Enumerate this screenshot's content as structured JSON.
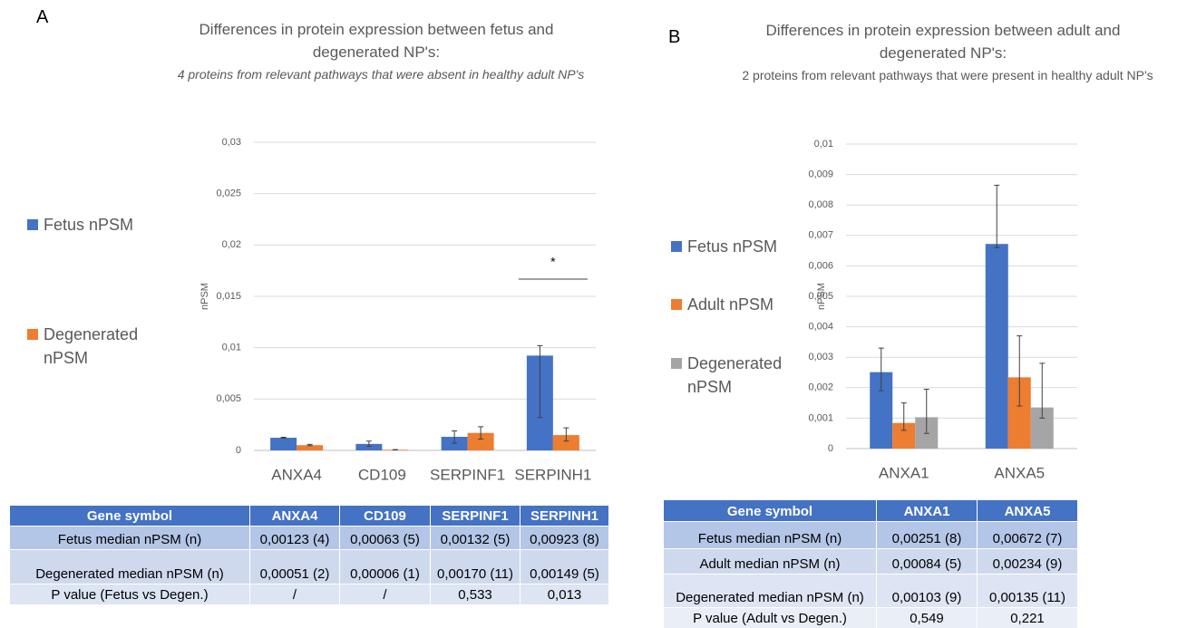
{
  "panel_labels": [
    "A",
    "B"
  ],
  "chart_data": [
    {
      "type": "bar",
      "title": "Differences in protein expression between fetus and degenerated NP's:",
      "subtitle": "4 proteins from relevant pathways that were absent in healthy adult NP's",
      "y_label": "nPSM",
      "categories": [
        "ANXA4",
        "CD109",
        "SERPINF1",
        "SERPINH1"
      ],
      "series": [
        {
          "name": "Fetus nPSM",
          "color": "#4472c4",
          "values": [
            0.00123,
            0.00063,
            0.00132,
            0.00923
          ],
          "error_low": [
            0.00118,
            0.0004,
            0.0007,
            0.0032
          ],
          "error_high": [
            0.00128,
            0.0009,
            0.0019,
            0.0102
          ]
        },
        {
          "name": "Degenerated nPSM",
          "color": "#ed7d31",
          "values": [
            0.00051,
            6e-05,
            0.0017,
            0.00149
          ],
          "error_low": [
            0.00045,
            4e-05,
            0.0011,
            0.0009
          ],
          "error_high": [
            0.00058,
            8e-05,
            0.0023,
            0.0022
          ]
        }
      ],
      "ylim": [
        0,
        0.03
      ],
      "yticks": [
        0,
        {
          "value": 0.005,
          "label": "0,005"
        },
        {
          "value": 0.01,
          "label": "0,01"
        },
        {
          "value": 0.015,
          "label": "0,015"
        },
        {
          "value": 0.02,
          "label": "0,02"
        },
        {
          "value": 0.025,
          "label": "0,025"
        },
        {
          "value": 0.03,
          "label": "0,03"
        }
      ],
      "grid": true,
      "legend": "left",
      "annotations": [
        {
          "text": "*"
        }
      ]
    },
    {
      "type": "bar",
      "title": "Differences in protein expression between adult and degenerated NP's:",
      "subtitle": "2 proteins from relevant pathways that were present in healthy adult NP's",
      "y_label": "nPSM",
      "categories": [
        "ANXA1",
        "ANXA5"
      ],
      "series": [
        {
          "name": "Fetus nPSM",
          "color": "#4472c4",
          "values": [
            0.00251,
            0.00672
          ],
          "error_low": [
            0.0019,
            0.0066
          ],
          "error_high": [
            0.0033,
            0.00865
          ]
        },
        {
          "name": "Adult nPSM",
          "color": "#ed7d31",
          "values": [
            0.00084,
            0.00234
          ],
          "error_low": [
            0.0006,
            0.0014
          ],
          "error_high": [
            0.0015,
            0.0037
          ]
        },
        {
          "name": "Degenerated nPSM",
          "color": "#a5a5a5",
          "values": [
            0.00103,
            0.00135
          ],
          "error_low": [
            0.0005,
            0.001
          ],
          "error_high": [
            0.00195,
            0.0028
          ]
        }
      ],
      "ylim": [
        0,
        0.01
      ],
      "yticks": [
        0,
        {
          "value": 0.001,
          "label": "0,001"
        },
        {
          "value": 0.002,
          "label": "0,002"
        },
        {
          "value": 0.003,
          "label": "0,003"
        },
        {
          "value": 0.004,
          "label": "0,004"
        },
        {
          "value": 0.005,
          "label": "0,005"
        },
        {
          "value": 0.006,
          "label": "0,006"
        },
        {
          "value": 0.007,
          "label": "0,007"
        },
        {
          "value": 0.008,
          "label": "0,008"
        },
        {
          "value": 0.009,
          "label": "0,009"
        },
        {
          "value": 0.01,
          "label": "0,01"
        }
      ],
      "grid": true,
      "legend": "left"
    }
  ],
  "tables": [
    {
      "header": [
        "Gene symbol",
        "ANXA4",
        "CD109",
        "SERPINF1",
        "SERPINH1"
      ],
      "rows": [
        [
          "Fetus median nPSM  (n)",
          "0,00123 (4)",
          "0,00063 (5)",
          "0,00132 (5)",
          "0,00923 (8)"
        ],
        [
          "Degenerated median nPSM (n)",
          "0,00051 (2)",
          "0,00006 (1)",
          "0,00170 (11)",
          "0,00149 (5)"
        ],
        [
          "P value (Fetus vs Degen.)",
          "/",
          "/",
          "0,533",
          "0,013"
        ]
      ]
    },
    {
      "header": [
        "Gene symbol",
        "ANXA1",
        "ANXA5"
      ],
      "rows": [
        [
          "Fetus median nPSM  (n)",
          "0,00251 (8)",
          "0,00672 (7)"
        ],
        [
          "Adult median nPSM  (n)",
          "0,00084 (5)",
          "0,00234 (9)"
        ],
        [
          "Degenerated median nPSM (n)",
          "0,00103 (9)",
          "0,00135 (11)"
        ],
        [
          "P value (Adult vs Degen.)",
          "0,549",
          "0,221"
        ]
      ]
    }
  ]
}
